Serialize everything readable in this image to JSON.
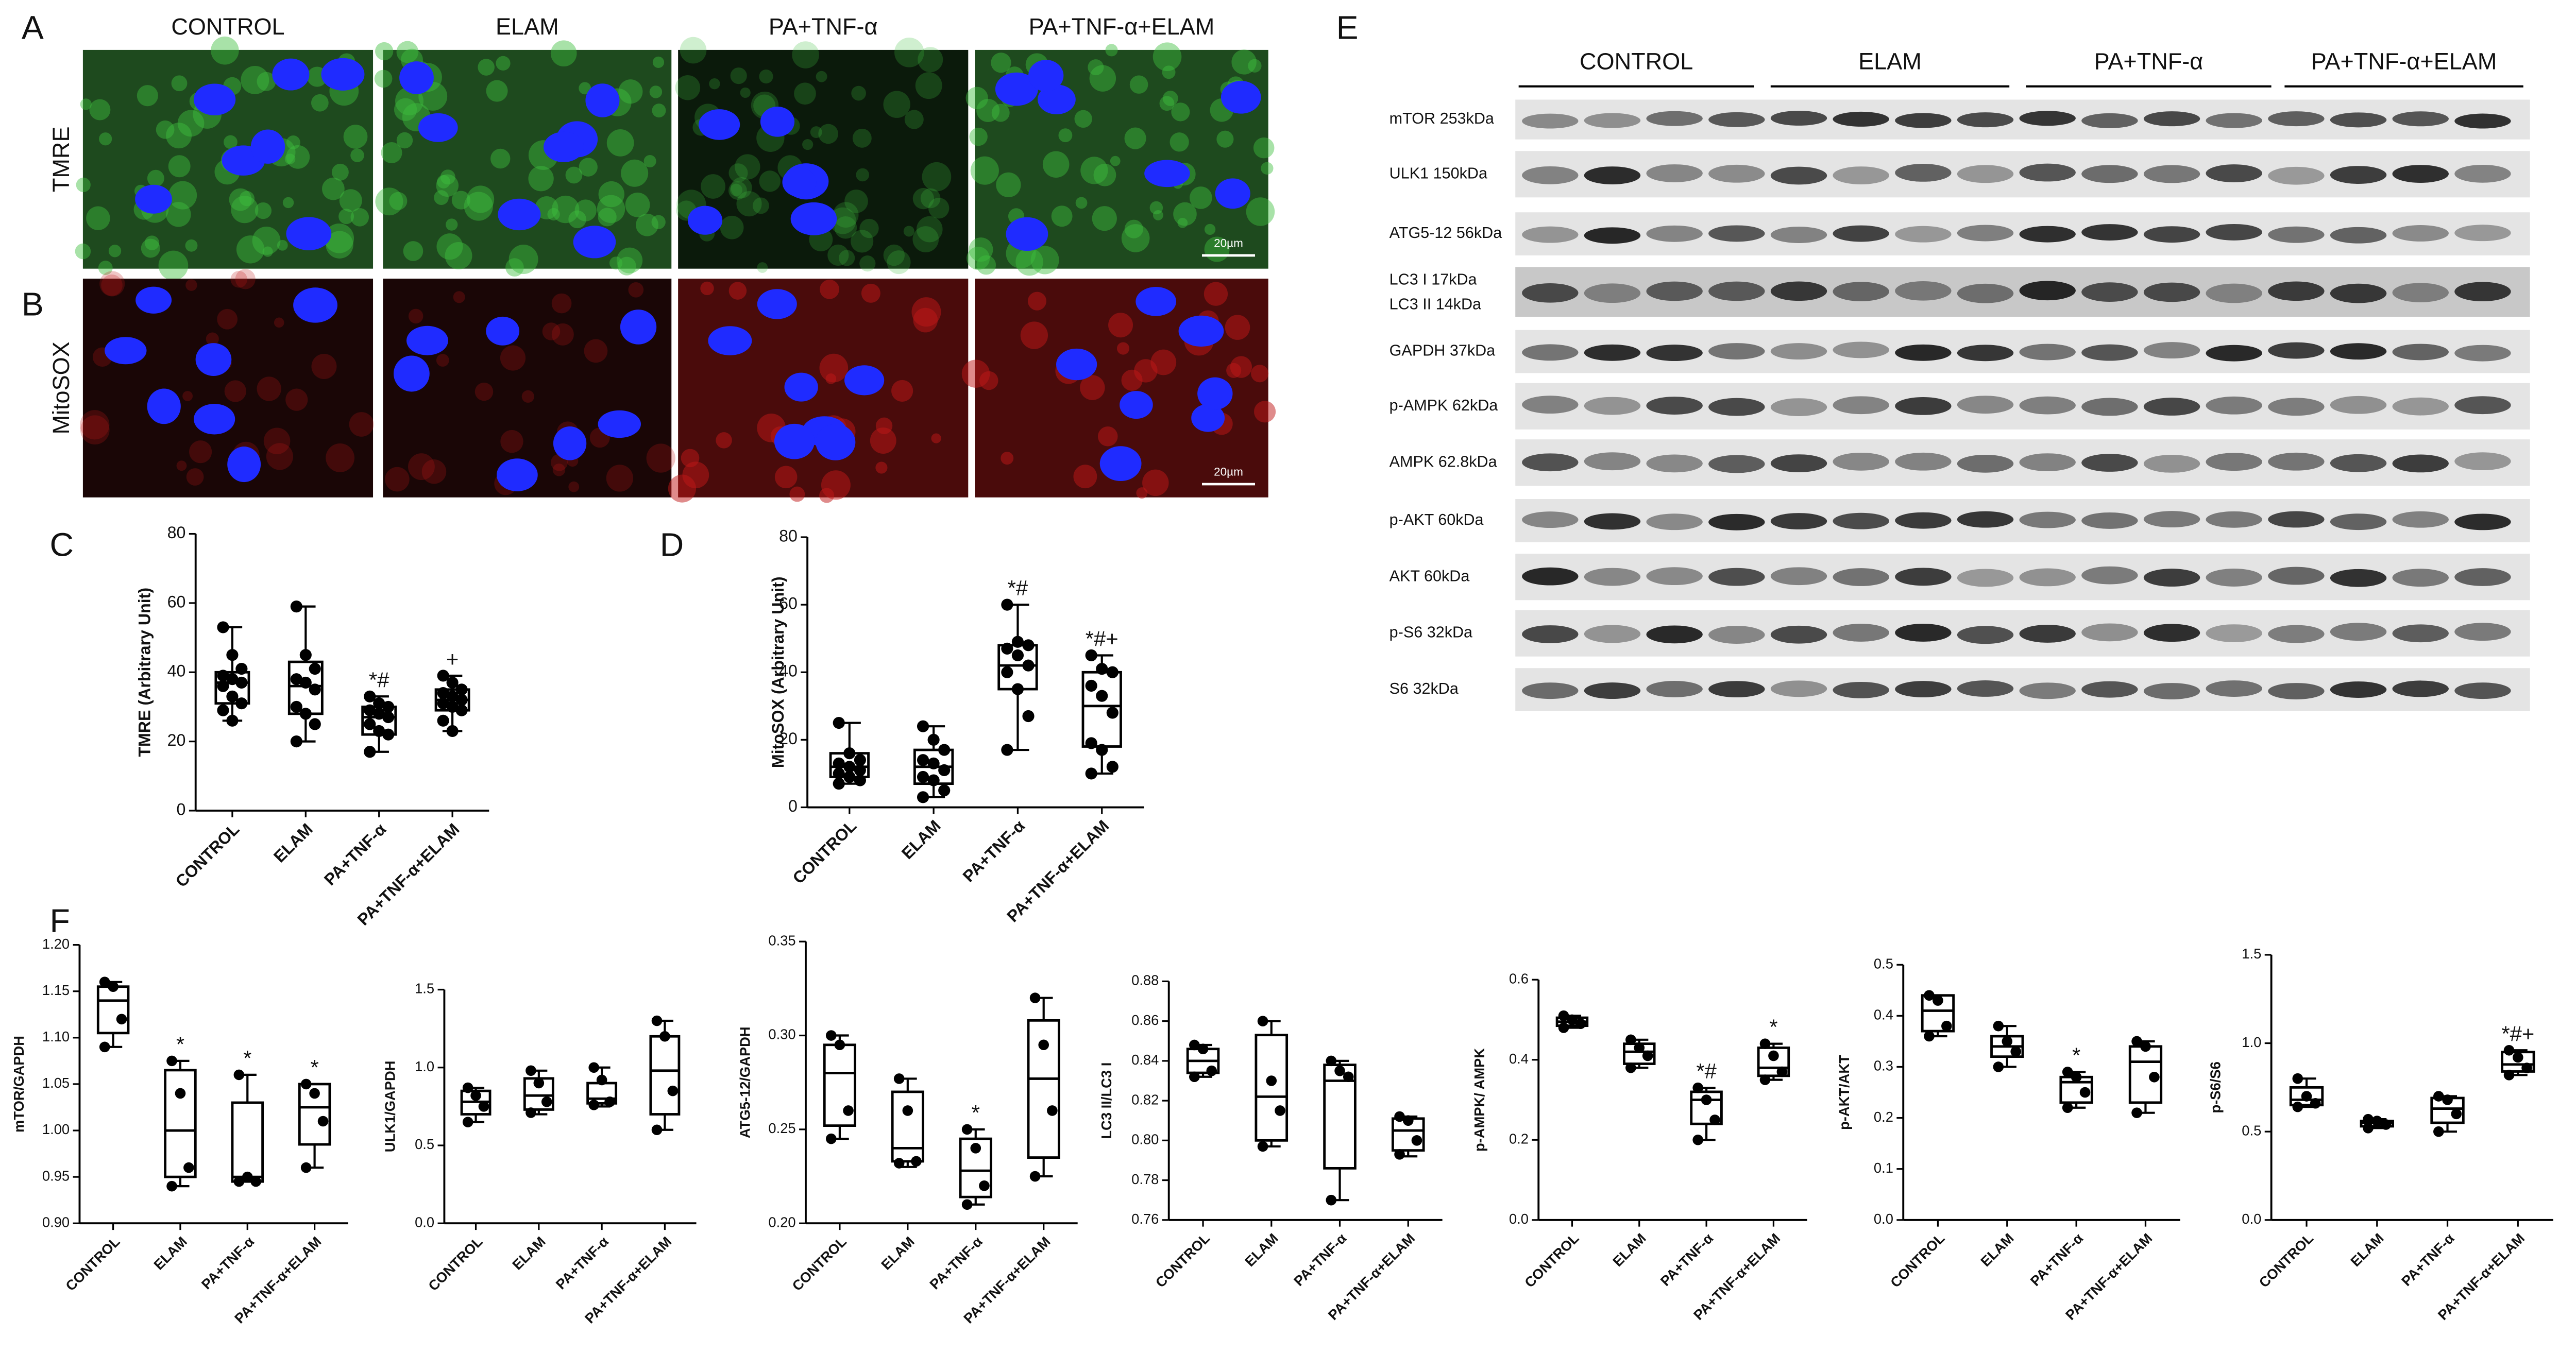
{
  "panel_labels": [
    "A",
    "B",
    "C",
    "D",
    "E",
    "F"
  ],
  "microscopy": {
    "columns": [
      "CONTROL",
      "ELAM",
      "PA+TNF-α",
      "PA+TNF-α+ELAM"
    ],
    "rows": [
      "TMRE",
      "MitoSOX"
    ],
    "scale_bar": "20µm"
  },
  "western_blot": {
    "groups": [
      "CONTROL",
      "ELAM",
      "PA+TNF-α",
      "PA+TNF-α+ELAM"
    ],
    "proteins": [
      "mTOR 253kDa",
      "ULK1 150kDa",
      "ATG5-12 56kDa",
      "LC3 I   17kDa",
      "LC3 II  14kDa",
      "GAPDH 37kDa",
      "p-AMPK 62kDa",
      "AMPK 62.8kDa",
      "p-AKT 60kDa",
      "AKT 60kDa",
      "p-S6 32kDa",
      "S6 32kDa"
    ]
  },
  "chart_data": [
    {
      "type": "box",
      "y_label": "TMRE (Arbitrary Unit)",
      "categories": [
        "CONTROL",
        "ELAM",
        "PA+TNF-α",
        "PA+TNF-α+ELAM"
      ],
      "ylim": [
        0,
        80
      ],
      "yticks": [
        0,
        20,
        40,
        60,
        80
      ],
      "boxes": [
        {
          "min": 26,
          "q1": 31,
          "median": 37,
          "q3": 40,
          "max": 53,
          "points": [
            53,
            45,
            41,
            39,
            38,
            37,
            36,
            33,
            31,
            29,
            26
          ]
        },
        {
          "min": 20,
          "q1": 28,
          "median": 36,
          "q3": 43,
          "max": 59,
          "points": [
            59,
            45,
            41,
            38,
            37,
            35,
            30,
            28,
            25,
            20
          ]
        },
        {
          "min": 17,
          "q1": 22,
          "median": 27,
          "q3": 30,
          "max": 33,
          "points": [
            33,
            31,
            30,
            29,
            28,
            27,
            25,
            23,
            22,
            17
          ]
        },
        {
          "min": 23,
          "q1": 29,
          "median": 32,
          "q3": 35,
          "max": 39,
          "points": [
            39,
            37,
            35,
            34,
            33,
            32,
            31,
            30,
            29,
            26,
            23
          ]
        }
      ],
      "annotations": [
        null,
        null,
        "*#",
        "+"
      ]
    },
    {
      "type": "box",
      "y_label": "MitoSOX (Arbitrary Unit)",
      "categories": [
        "CONTROL",
        "ELAM",
        "PA+TNF-α",
        "PA+TNF-α+ELAM"
      ],
      "ylim": [
        0,
        80
      ],
      "yticks": [
        0,
        20,
        40,
        60,
        80
      ],
      "boxes": [
        {
          "min": 7,
          "q1": 9,
          "median": 12,
          "q3": 16,
          "max": 25,
          "points": [
            25,
            16,
            14,
            13,
            12,
            11,
            10,
            9,
            8,
            7
          ]
        },
        {
          "min": 3,
          "q1": 7,
          "median": 12,
          "q3": 17,
          "max": 24,
          "points": [
            24,
            20,
            17,
            14,
            13,
            11,
            9,
            8,
            5,
            3
          ]
        },
        {
          "min": 17,
          "q1": 35,
          "median": 42,
          "q3": 48,
          "max": 60,
          "points": [
            60,
            49,
            48,
            47,
            45,
            42,
            40,
            35,
            27,
            17
          ]
        },
        {
          "min": 10,
          "q1": 18,
          "median": 30,
          "q3": 40,
          "max": 45,
          "points": [
            45,
            41,
            40,
            36,
            33,
            28,
            19,
            17,
            12,
            10
          ]
        }
      ],
      "annotations": [
        null,
        null,
        "*#",
        "*#+"
      ]
    },
    {
      "type": "box",
      "y_label": "mTOR/GAPDH",
      "categories": [
        "CONTROL",
        "ELAM",
        "PA+TNF-α",
        "PA+TNF-α+ELAM"
      ],
      "ylim": [
        0.9,
        1.2
      ],
      "yticks": [
        {
          "value": 0.9,
          "label": "0.90"
        },
        0.95,
        {
          "value": 1,
          "label": "1.00"
        },
        1.05,
        {
          "value": 1.1,
          "label": "1.10"
        },
        1.15,
        {
          "value": 1.2,
          "label": "1.20"
        }
      ],
      "boxes": [
        {
          "min": 1.09,
          "q1": 1.105,
          "median": 1.14,
          "q3": 1.155,
          "max": 1.16,
          "points": [
            1.16,
            1.155,
            1.12,
            1.09
          ]
        },
        {
          "min": 0.94,
          "q1": 0.95,
          "median": 1.0,
          "q3": 1.065,
          "max": 1.075,
          "points": [
            1.075,
            1.04,
            0.96,
            0.94
          ]
        },
        {
          "min": 0.945,
          "q1": 0.945,
          "median": 0.95,
          "q3": 1.03,
          "max": 1.06,
          "points": [
            1.06,
            0.95,
            0.945,
            0.945
          ]
        },
        {
          "min": 0.96,
          "q1": 0.985,
          "median": 1.025,
          "q3": 1.05,
          "max": 1.05,
          "points": [
            1.05,
            1.04,
            1.01,
            0.96
          ]
        }
      ],
      "annotations": [
        null,
        "*",
        "*",
        "*"
      ]
    },
    {
      "type": "box",
      "y_label": "ULK1/GAPDH",
      "categories": [
        "CONTROL",
        "ELAM",
        "PA+TNF-α",
        "PA+TNF-α+ELAM"
      ],
      "ylim": [
        0,
        1.5
      ],
      "yticks": [
        {
          "value": 0,
          "label": "0.0"
        },
        0.5,
        {
          "value": 1,
          "label": "1.0"
        },
        1.5
      ],
      "boxes": [
        {
          "min": 0.65,
          "q1": 0.7,
          "median": 0.78,
          "q3": 0.85,
          "max": 0.87,
          "points": [
            0.87,
            0.82,
            0.75,
            0.65
          ]
        },
        {
          "min": 0.7,
          "q1": 0.73,
          "median": 0.82,
          "q3": 0.93,
          "max": 0.98,
          "points": [
            0.98,
            0.9,
            0.78,
            0.71
          ]
        },
        {
          "min": 0.75,
          "q1": 0.77,
          "median": 0.8,
          "q3": 0.9,
          "max": 1.0,
          "points": [
            1.0,
            0.92,
            0.78,
            0.76
          ]
        },
        {
          "min": 0.6,
          "q1": 0.7,
          "median": 0.98,
          "q3": 1.2,
          "max": 1.3,
          "points": [
            1.3,
            1.2,
            0.85,
            0.6
          ]
        }
      ],
      "annotations": [
        null,
        null,
        null,
        null
      ]
    },
    {
      "type": "box",
      "y_label": "ATG5-12/GAPDH",
      "categories": [
        "CONTROL",
        "ELAM",
        "PA+TNF-α",
        "PA+TNF-α+ELAM"
      ],
      "ylim": [
        0.2,
        0.35
      ],
      "yticks": [
        {
          "value": 0.2,
          "label": "0.20"
        },
        0.25,
        {
          "value": 0.3,
          "label": "0.30"
        },
        0.35
      ],
      "boxes": [
        {
          "min": 0.245,
          "q1": 0.252,
          "median": 0.28,
          "q3": 0.295,
          "max": 0.3,
          "points": [
            0.3,
            0.295,
            0.26,
            0.245
          ]
        },
        {
          "min": 0.23,
          "q1": 0.233,
          "median": 0.24,
          "q3": 0.27,
          "max": 0.277,
          "points": [
            0.277,
            0.26,
            0.233,
            0.232
          ]
        },
        {
          "min": 0.21,
          "q1": 0.214,
          "median": 0.228,
          "q3": 0.245,
          "max": 0.25,
          "points": [
            0.25,
            0.24,
            0.22,
            0.21
          ]
        },
        {
          "min": 0.225,
          "q1": 0.235,
          "median": 0.277,
          "q3": 0.308,
          "max": 0.32,
          "points": [
            0.32,
            0.295,
            0.26,
            0.225
          ]
        }
      ],
      "annotations": [
        null,
        null,
        "*",
        null
      ]
    },
    {
      "type": "box",
      "y_label": "LC3 II/LC3 I",
      "categories": [
        "CONTROL",
        "ELAM",
        "PA+TNF-α",
        "PA+TNF-α+ELAM"
      ],
      "ylim": [
        0.76,
        0.88
      ],
      "yticks": [
        0.76,
        0.78,
        {
          "value": 0.8,
          "label": "0.80"
        },
        0.82,
        0.84,
        0.86,
        0.88
      ],
      "boxes": [
        {
          "min": 0.832,
          "q1": 0.834,
          "median": 0.84,
          "q3": 0.846,
          "max": 0.848,
          "points": [
            0.848,
            0.846,
            0.835,
            0.832
          ]
        },
        {
          "min": 0.797,
          "q1": 0.8,
          "median": 0.822,
          "q3": 0.853,
          "max": 0.86,
          "points": [
            0.86,
            0.83,
            0.815,
            0.797
          ]
        },
        {
          "min": 0.77,
          "q1": 0.786,
          "median": 0.83,
          "q3": 0.838,
          "max": 0.84,
          "points": [
            0.84,
            0.835,
            0.832,
            0.77
          ]
        },
        {
          "min": 0.792,
          "q1": 0.795,
          "median": 0.805,
          "q3": 0.811,
          "max": 0.812,
          "points": [
            0.812,
            0.81,
            0.8,
            0.793
          ]
        }
      ],
      "annotations": [
        null,
        null,
        null,
        null
      ]
    },
    {
      "type": "box",
      "y_label": "p-AMPK/ AMPK",
      "categories": [
        "CONTROL",
        "ELAM",
        "PA+TNF-α",
        "PA+TNF-α+ELAM"
      ],
      "ylim": [
        0,
        0.6
      ],
      "yticks": [
        {
          "value": 0,
          "label": "0.0"
        },
        0.2,
        0.4,
        0.6
      ],
      "boxes": [
        {
          "min": 0.48,
          "q1": 0.485,
          "median": 0.495,
          "q3": 0.505,
          "max": 0.51,
          "points": [
            0.51,
            0.5,
            0.49,
            0.48
          ]
        },
        {
          "min": 0.38,
          "q1": 0.39,
          "median": 0.42,
          "q3": 0.44,
          "max": 0.45,
          "points": [
            0.45,
            0.43,
            0.41,
            0.38
          ]
        },
        {
          "min": 0.2,
          "q1": 0.24,
          "median": 0.3,
          "q3": 0.32,
          "max": 0.33,
          "points": [
            0.33,
            0.3,
            0.25,
            0.2
          ]
        },
        {
          "min": 0.35,
          "q1": 0.36,
          "median": 0.38,
          "q3": 0.43,
          "max": 0.44,
          "points": [
            0.44,
            0.41,
            0.37,
            0.35
          ]
        }
      ],
      "annotations": [
        null,
        null,
        "*#",
        "*"
      ]
    },
    {
      "type": "box",
      "y_label": "p-AKT/AKT",
      "categories": [
        "CONTROL",
        "ELAM",
        "PA+TNF-α",
        "PA+TNF-α+ELAM"
      ],
      "ylim": [
        0,
        0.5
      ],
      "yticks": [
        {
          "value": 0,
          "label": "0.0"
        },
        0.1,
        0.2,
        0.3,
        0.4,
        0.5
      ],
      "boxes": [
        {
          "min": 0.36,
          "q1": 0.37,
          "median": 0.41,
          "q3": 0.44,
          "max": 0.44,
          "points": [
            0.44,
            0.43,
            0.38,
            0.36
          ]
        },
        {
          "min": 0.3,
          "q1": 0.32,
          "median": 0.34,
          "q3": 0.36,
          "max": 0.38,
          "points": [
            0.38,
            0.35,
            0.33,
            0.3
          ]
        },
        {
          "min": 0.22,
          "q1": 0.23,
          "median": 0.27,
          "q3": 0.28,
          "max": 0.29,
          "points": [
            0.29,
            0.28,
            0.25,
            0.22
          ]
        },
        {
          "min": 0.21,
          "q1": 0.23,
          "median": 0.31,
          "q3": 0.34,
          "max": 0.35,
          "points": [
            0.35,
            0.34,
            0.28,
            0.21
          ]
        }
      ],
      "annotations": [
        null,
        null,
        "*",
        null
      ]
    },
    {
      "type": "box",
      "y_label": "p-S6/S6",
      "categories": [
        "CONTROL",
        "ELAM",
        "PA+TNF-α",
        "PA+TNF-α+ELAM"
      ],
      "ylim": [
        0,
        1.5
      ],
      "yticks": [
        {
          "value": 0,
          "label": "0.0"
        },
        0.5,
        {
          "value": 1,
          "label": "1.0"
        },
        1.5
      ],
      "boxes": [
        {
          "min": 0.64,
          "q1": 0.65,
          "median": 0.68,
          "q3": 0.75,
          "max": 0.8,
          "points": [
            0.8,
            0.7,
            0.66,
            0.64
          ]
        },
        {
          "min": 0.52,
          "q1": 0.53,
          "median": 0.55,
          "q3": 0.56,
          "max": 0.57,
          "points": [
            0.57,
            0.56,
            0.54,
            0.52
          ]
        },
        {
          "min": 0.5,
          "q1": 0.55,
          "median": 0.63,
          "q3": 0.69,
          "max": 0.7,
          "points": [
            0.7,
            0.68,
            0.6,
            0.5
          ]
        },
        {
          "min": 0.82,
          "q1": 0.84,
          "median": 0.88,
          "q3": 0.95,
          "max": 0.96,
          "points": [
            0.96,
            0.92,
            0.86,
            0.82
          ]
        }
      ],
      "annotations": [
        null,
        null,
        null,
        "*#+"
      ]
    }
  ]
}
